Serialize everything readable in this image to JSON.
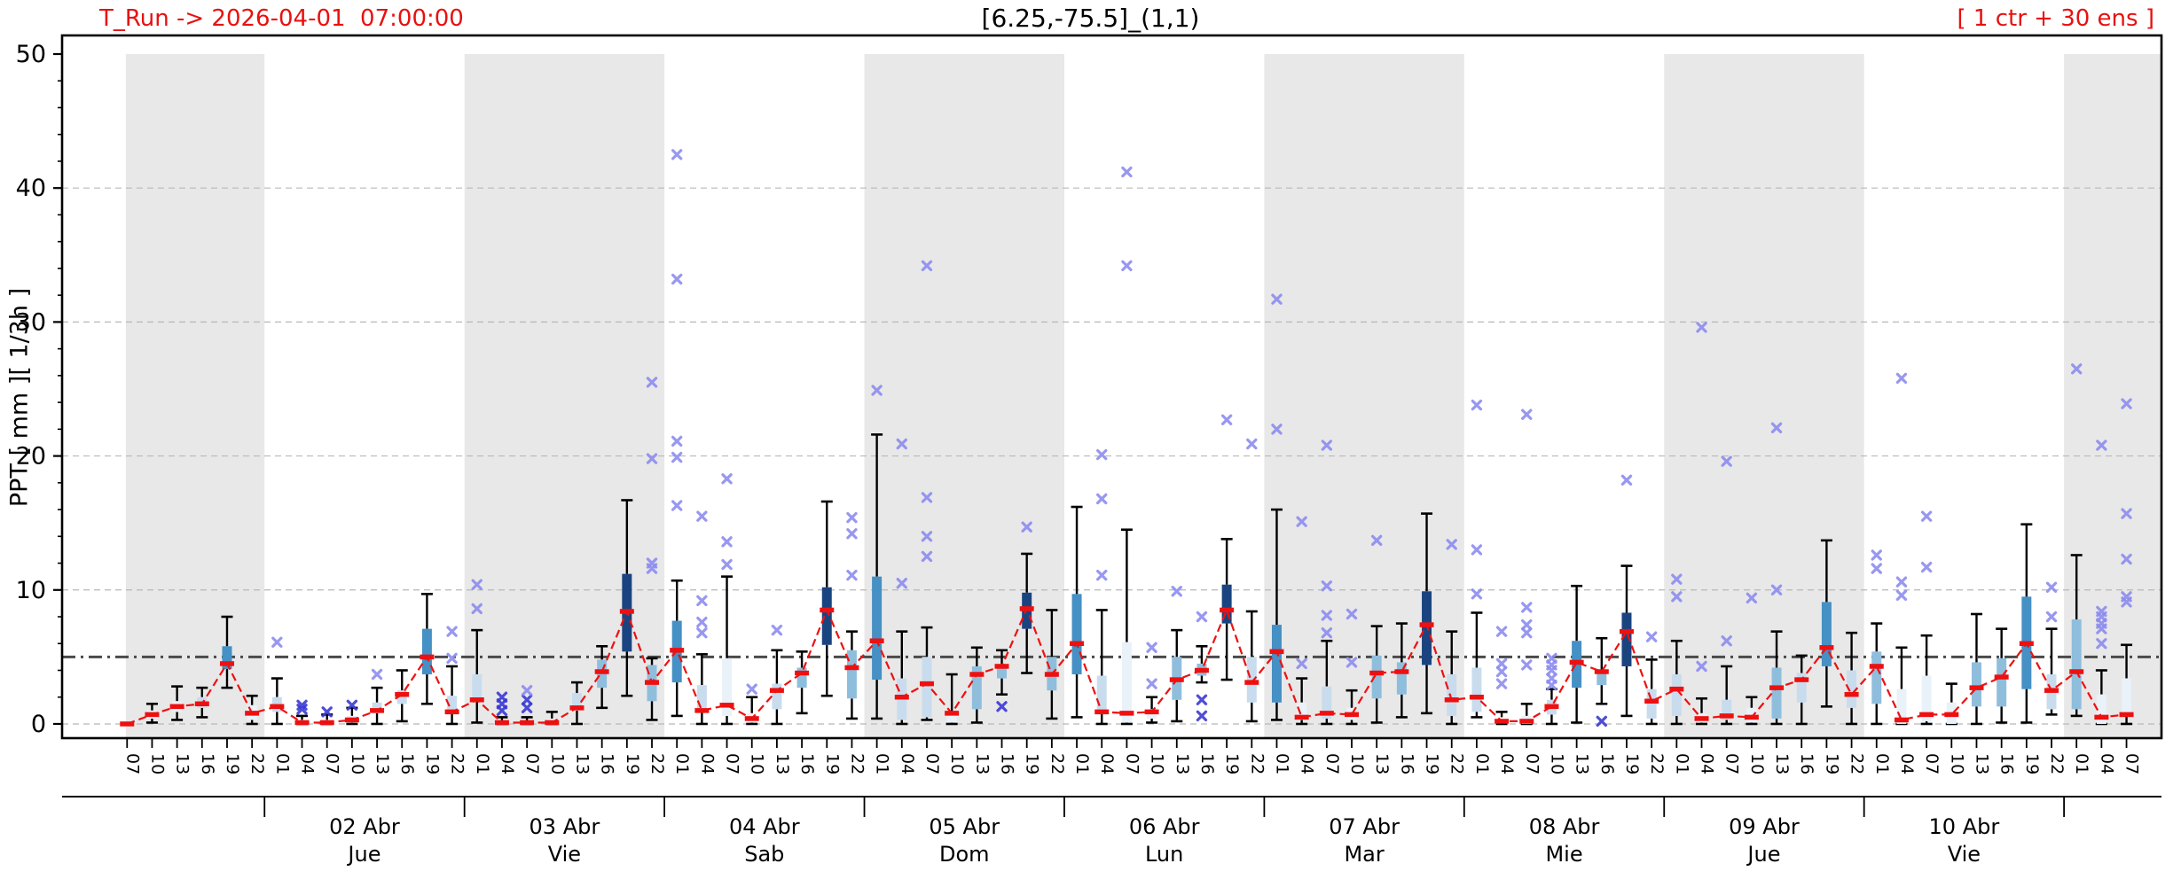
{
  "header": {
    "t_run_label": "T_Run -> 2026-04-01  07:00:00",
    "title": "[6.25,-75.5]_(1,1)",
    "ens_label": "[ 1 ctr + 30 ens ]"
  },
  "chart_data": {
    "type": "boxplot-timeseries",
    "title": "[6.25,-75.5]_(1,1)",
    "ylabel": "PPT  [ mm ][ 1/3h ]",
    "ylim": [
      -1.06,
      50
    ],
    "yticks": [
      0,
      10,
      20,
      30,
      40,
      50
    ],
    "y_gridlines": [
      0,
      10,
      20,
      30,
      40
    ],
    "threshold_line": 5,
    "x_index_range": [
      -2.6,
      81.4
    ],
    "legend": "red dashed line = ctr/median trace, boxes = ensemble IQR, x = outliers",
    "box_fields": [
      "hour",
      "whisker_lo",
      "q1",
      "median",
      "q3",
      "whisker_hi",
      "shade",
      "outliers"
    ],
    "boxes": [
      [
        "07",
        0,
        0,
        0,
        0,
        0,
        "none",
        []
      ],
      [
        "10",
        0.1,
        0.4,
        0.7,
        1.0,
        1.5,
        "vlight",
        []
      ],
      [
        "13",
        0.3,
        0.9,
        1.3,
        1.7,
        2.8,
        "vlight",
        []
      ],
      [
        "16",
        0.5,
        1.2,
        1.5,
        2.0,
        2.7,
        "light",
        []
      ],
      [
        "19",
        2.7,
        4.1,
        4.5,
        5.8,
        8.0,
        "steel",
        []
      ],
      [
        "22",
        0,
        0.3,
        0.8,
        1.4,
        2.1,
        "vlight",
        []
      ],
      [
        "01",
        0,
        0.9,
        1.3,
        2.0,
        3.4,
        "light",
        [
          6.1
        ]
      ],
      [
        "04",
        0,
        0,
        0.1,
        0.3,
        0.6,
        "none",
        [
          1.1,
          1.4
        ]
      ],
      [
        "07",
        0,
        0,
        0.1,
        0.3,
        0.7,
        "none",
        [
          0.9
        ]
      ],
      [
        "10",
        0,
        0.1,
        0.3,
        0.6,
        1.2,
        "vlight",
        [
          1.4
        ]
      ],
      [
        "13",
        0,
        0.8,
        1.0,
        1.6,
        2.7,
        "light",
        [
          3.7
        ]
      ],
      [
        "16",
        0.2,
        1.5,
        2.2,
        2.5,
        4.0,
        "light",
        []
      ],
      [
        "19",
        1.5,
        3.7,
        5.0,
        7.1,
        9.7,
        "steel",
        []
      ],
      [
        "22",
        0,
        0.8,
        0.9,
        2.1,
        4.3,
        "light",
        [
          4.9,
          6.9
        ]
      ],
      [
        "01",
        0.1,
        1.7,
        1.8,
        3.7,
        7.0,
        "light",
        [
          8.6,
          10.4
        ]
      ],
      [
        "04",
        0,
        0,
        0.1,
        0.2,
        0.5,
        "none",
        [
          1.0,
          1.5,
          2.0
        ]
      ],
      [
        "07",
        0,
        0,
        0.1,
        0.2,
        0.5,
        "none",
        [
          1.2,
          1.8,
          2.5
        ]
      ],
      [
        "10",
        0,
        0,
        0.1,
        0.4,
        0.9,
        "vlight",
        []
      ],
      [
        "13",
        0,
        1.0,
        1.2,
        2.3,
        3.1,
        "light",
        []
      ],
      [
        "16",
        1.2,
        2.7,
        3.9,
        4.8,
        5.8,
        "mlight",
        []
      ],
      [
        "19",
        2.1,
        5.4,
        8.4,
        11.2,
        16.7,
        "navy",
        []
      ],
      [
        "22",
        0.3,
        1.7,
        3.1,
        4.4,
        4.9,
        "mlight",
        [
          11.6,
          12.0,
          19.8,
          25.5
        ]
      ],
      [
        "01",
        0.6,
        3.1,
        5.5,
        7.7,
        10.7,
        "steel",
        [
          16.3,
          19.9,
          21.1,
          33.2,
          42.5
        ]
      ],
      [
        "04",
        0,
        0.9,
        1.0,
        2.9,
        5.2,
        "light",
        [
          6.8,
          7.6,
          9.2,
          15.5
        ]
      ],
      [
        "07",
        0,
        0.6,
        1.4,
        4.9,
        11.0,
        "vlight",
        [
          11.9,
          13.6,
          18.3
        ]
      ],
      [
        "10",
        0,
        0.1,
        0.4,
        0.8,
        2.0,
        "vlight",
        [
          2.6
        ]
      ],
      [
        "13",
        0,
        1.1,
        2.5,
        3.0,
        5.5,
        "light",
        [
          7.0
        ]
      ],
      [
        "16",
        0.8,
        2.7,
        3.8,
        4.2,
        5.4,
        "mlight",
        []
      ],
      [
        "19",
        2.1,
        5.9,
        8.5,
        10.2,
        16.6,
        "navy",
        []
      ],
      [
        "22",
        0.4,
        1.9,
        4.2,
        5.5,
        6.9,
        "mlight",
        [
          11.1,
          14.2,
          15.4
        ]
      ],
      [
        "01",
        0.4,
        3.3,
        6.2,
        11.0,
        21.6,
        "steel",
        [
          24.9
        ]
      ],
      [
        "04",
        0,
        0.3,
        2.0,
        3.4,
        6.9,
        "light",
        [
          10.5,
          20.9
        ]
      ],
      [
        "07",
        0.3,
        0.5,
        3.0,
        5.0,
        7.2,
        "light",
        [
          12.5,
          14.0,
          16.9,
          34.2
        ]
      ],
      [
        "10",
        0,
        0.1,
        0.8,
        0.9,
        3.7,
        "vlight",
        []
      ],
      [
        "13",
        0.1,
        1.1,
        3.7,
        4.3,
        5.7,
        "mlight",
        []
      ],
      [
        "16",
        2.2,
        3.4,
        4.3,
        4.4,
        5.5,
        "mlight",
        [
          1.3
        ]
      ],
      [
        "19",
        3.8,
        7.1,
        8.6,
        9.8,
        12.7,
        "navy",
        [
          14.7
        ]
      ],
      [
        "22",
        0.4,
        2.5,
        3.7,
        5.0,
        8.5,
        "mlight",
        []
      ],
      [
        "01",
        0.5,
        3.7,
        6.0,
        9.7,
        16.2,
        "steel",
        []
      ],
      [
        "04",
        0,
        0.8,
        0.9,
        3.6,
        8.5,
        "light",
        [
          11.1,
          16.8,
          20.1
        ]
      ],
      [
        "07",
        0,
        0.1,
        0.8,
        6.1,
        14.5,
        "vlight",
        [
          34.2,
          41.2
        ]
      ],
      [
        "10",
        0.1,
        0.4,
        0.9,
        1.1,
        2.0,
        "vlight",
        [
          3.0,
          5.7
        ]
      ],
      [
        "13",
        0.2,
        1.8,
        3.3,
        5.0,
        7.0,
        "mlight",
        [
          9.9
        ]
      ],
      [
        "16",
        3.1,
        3.6,
        4.0,
        4.5,
        5.8,
        "mlight",
        [
          0.6,
          1.8,
          8.0
        ]
      ],
      [
        "19",
        3.3,
        7.5,
        8.5,
        10.4,
        13.8,
        "navy",
        [
          22.7
        ]
      ],
      [
        "22",
        0.2,
        1.6,
        3.1,
        5.0,
        8.4,
        "light",
        [
          20.9
        ]
      ],
      [
        "01",
        0.3,
        1.6,
        5.4,
        7.4,
        16.0,
        "steel",
        [
          22.0,
          31.7
        ]
      ],
      [
        "04",
        0,
        0.3,
        0.5,
        1.6,
        3.4,
        "vlight",
        [
          4.5,
          15.1
        ]
      ],
      [
        "07",
        0,
        0.4,
        0.8,
        2.8,
        6.2,
        "light",
        [
          6.8,
          8.1,
          10.3,
          20.8
        ]
      ],
      [
        "10",
        0,
        0.3,
        0.7,
        1.2,
        2.5,
        "vlight",
        [
          4.6,
          8.2
        ]
      ],
      [
        "13",
        0.1,
        1.9,
        3.8,
        5.1,
        7.3,
        "mlight",
        [
          13.7
        ]
      ],
      [
        "16",
        0.5,
        2.2,
        3.9,
        4.6,
        7.5,
        "mlight",
        []
      ],
      [
        "19",
        0.8,
        4.4,
        7.4,
        9.9,
        15.7,
        "navy",
        []
      ],
      [
        "22",
        0,
        0.6,
        1.8,
        3.7,
        6.9,
        "light",
        [
          13.4
        ]
      ],
      [
        "01",
        0.5,
        0.9,
        2.0,
        4.2,
        8.3,
        "light",
        [
          9.7,
          13.0,
          23.8
        ]
      ],
      [
        "04",
        0,
        0,
        0.2,
        0.5,
        0.9,
        "none",
        [
          3.0,
          3.9,
          4.5,
          6.9
        ]
      ],
      [
        "07",
        0,
        0,
        0.2,
        0.6,
        1.5,
        "vlight",
        [
          4.4,
          6.8,
          7.4,
          8.7,
          23.1
        ]
      ],
      [
        "10",
        0,
        0.7,
        1.3,
        1.8,
        2.6,
        "light",
        [
          2.9,
          3.4,
          4.0,
          4.4,
          4.9
        ]
      ],
      [
        "13",
        0.1,
        2.7,
        4.6,
        6.2,
        10.3,
        "steel",
        []
      ],
      [
        "16",
        1.5,
        2.9,
        3.9,
        4.0,
        6.4,
        "mlight",
        [
          0.2
        ]
      ],
      [
        "19",
        0.6,
        4.3,
        6.9,
        8.3,
        11.8,
        "navy",
        [
          18.2
        ]
      ],
      [
        "22",
        0,
        0.4,
        1.7,
        2.6,
        4.8,
        "light",
        [
          6.5
        ]
      ],
      [
        "01",
        0,
        0.6,
        2.6,
        3.7,
        6.2,
        "light",
        [
          9.5,
          10.8
        ]
      ],
      [
        "04",
        0,
        0.1,
        0.4,
        0.8,
        1.9,
        "vlight",
        [
          4.3,
          29.6
        ]
      ],
      [
        "07",
        0,
        0.3,
        0.6,
        1.8,
        4.3,
        "light",
        [
          6.2,
          19.6
        ]
      ],
      [
        "10",
        0,
        0.1,
        0.5,
        1.2,
        2.0,
        "vlight",
        [
          9.4
        ]
      ],
      [
        "13",
        0,
        0.4,
        2.7,
        4.2,
        6.9,
        "mlight",
        [
          10.0,
          22.1
        ]
      ],
      [
        "16",
        0,
        1.6,
        3.3,
        3.8,
        5.1,
        "light",
        []
      ],
      [
        "19",
        1.3,
        4.3,
        5.7,
        9.1,
        13.7,
        "steel",
        []
      ],
      [
        "22",
        0,
        1.2,
        2.2,
        4.0,
        6.8,
        "light",
        []
      ],
      [
        "01",
        0,
        1.5,
        4.3,
        5.4,
        7.5,
        "mlight",
        [
          11.6,
          12.6
        ]
      ],
      [
        "04",
        0,
        0,
        0.3,
        2.6,
        5.7,
        "vlight",
        [
          9.6,
          10.6,
          25.8
        ]
      ],
      [
        "07",
        0,
        0.2,
        0.7,
        3.6,
        6.6,
        "vlight",
        [
          11.7,
          15.5
        ]
      ],
      [
        "10",
        0,
        0,
        0.7,
        1.6,
        3.0,
        "vlight",
        []
      ],
      [
        "13",
        0,
        1.3,
        2.7,
        4.6,
        8.2,
        "mlight",
        []
      ],
      [
        "16",
        0.1,
        1.3,
        3.5,
        4.9,
        7.1,
        "mlight",
        []
      ],
      [
        "19",
        0.1,
        2.6,
        6.0,
        9.5,
        14.9,
        "steel",
        []
      ],
      [
        "22",
        0.7,
        1.1,
        2.5,
        3.7,
        7.1,
        "light",
        [
          8.0,
          10.2
        ]
      ],
      [
        "01",
        0.6,
        1.1,
        3.9,
        7.8,
        12.6,
        "mlight",
        [
          26.5
        ]
      ],
      [
        "04",
        0,
        0,
        0.5,
        2.2,
        4.0,
        "vlight",
        [
          6.0,
          7.1,
          7.5,
          8.0,
          8.4,
          20.8
        ]
      ],
      [
        "07",
        0,
        0.7,
        0.7,
        3.4,
        5.9,
        "vlight",
        [
          9.1,
          9.5,
          12.3,
          15.7,
          23.9
        ]
      ]
    ],
    "days": [
      {
        "date": "02 Abr",
        "weekday": "Jue",
        "center_n": 9.5
      },
      {
        "date": "03 Abr",
        "weekday": "Vie",
        "center_n": 17.5
      },
      {
        "date": "04 Abr",
        "weekday": "Sab",
        "center_n": 25.5
      },
      {
        "date": "05 Abr",
        "weekday": "Dom",
        "center_n": 33.5
      },
      {
        "date": "06 Abr",
        "weekday": "Lun",
        "center_n": 41.5
      },
      {
        "date": "07 Abr",
        "weekday": "Mar",
        "center_n": 49.5
      },
      {
        "date": "08 Abr",
        "weekday": "Mie",
        "center_n": 57.5
      },
      {
        "date": "09 Abr",
        "weekday": "Jue",
        "center_n": 65.5
      },
      {
        "date": "10 Abr",
        "weekday": "Vie",
        "center_n": 73.5
      }
    ],
    "day_separators_n": [
      5.5,
      13.5,
      21.5,
      29.5,
      37.5,
      45.5,
      53.5,
      61.5,
      69.5,
      77.5
    ],
    "shaded_bands_n": [
      [
        -0.05,
        5.5
      ],
      [
        13.5,
        21.5
      ],
      [
        29.5,
        37.5
      ],
      [
        45.5,
        53.5
      ],
      [
        61.5,
        69.5
      ],
      [
        77.5,
        81.4
      ]
    ]
  },
  "colors": {
    "red": "#ee1010",
    "band_gray": "#e8e8e8",
    "grid": "#b8b8b8",
    "threshold": "#4a4a4a",
    "whisker": "#000000",
    "outlier_light": "#8d8df0",
    "outlier_dark": "#3a3ad4",
    "box_shades": {
      "navy": "#1a4480",
      "steel": "#4590c4",
      "mlight": "#8fbedd",
      "light": "#c8dcee",
      "vlight": "#e9f1f9",
      "none": "none"
    }
  }
}
